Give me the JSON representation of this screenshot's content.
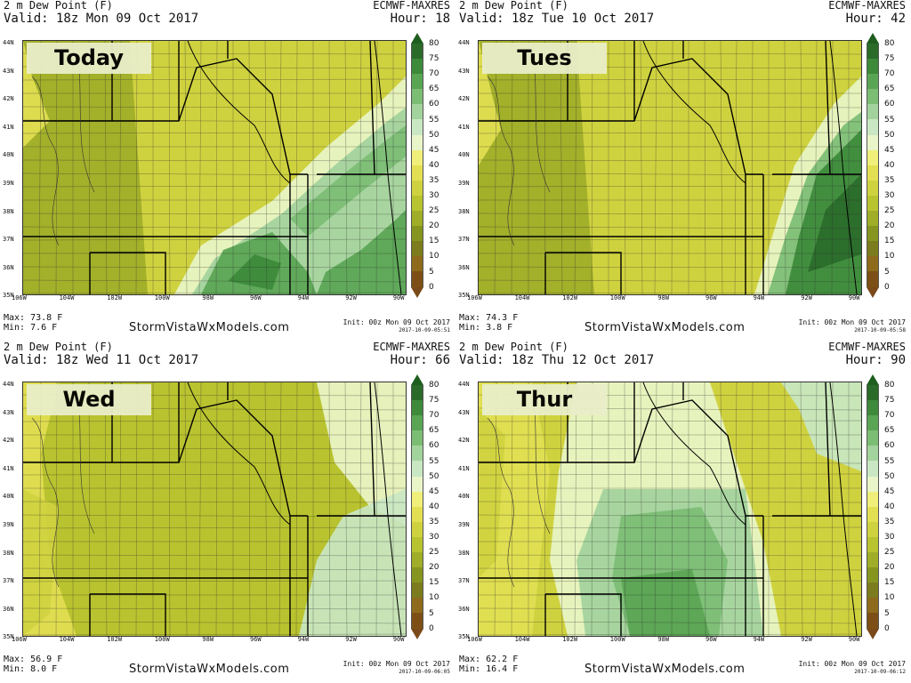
{
  "panels": [
    {
      "title": "2 m Dew Point (F)",
      "valid": "Valid: 18z Mon 09 Oct 2017",
      "model": "ECMWF-MAXRES",
      "hour": "Hour: 18",
      "day": "Today",
      "max": "Max: 73.8 F",
      "min": "Min: 7.6 F",
      "init": "Init: 00z Mon 09 Oct 2017",
      "stamp": "2017-10-09-05:51"
    },
    {
      "title": "2 m Dew Point (F)",
      "valid": "Valid: 18z Tue 10 Oct 2017",
      "model": "ECMWF-MAXRES",
      "hour": "Hour: 42",
      "day": "Tues",
      "max": "Max: 74.3 F",
      "min": "Min: 3.8 F",
      "init": "Init: 00z Mon 09 Oct 2017",
      "stamp": "2017-10-09-05:58"
    },
    {
      "title": "2 m Dew Point (F)",
      "valid": "Valid: 18z Wed 11 Oct 2017",
      "model": "ECMWF-MAXRES",
      "hour": "Hour: 66",
      "day": "Wed",
      "max": "Max: 56.9 F",
      "min": "Min: 8.0 F",
      "init": "Init: 00z Mon 09 Oct 2017",
      "stamp": "2017-10-09-06:05"
    },
    {
      "title": "2 m Dew Point (F)",
      "valid": "Valid: 18z Thu 12 Oct 2017",
      "model": "ECMWF-MAXRES",
      "hour": "Hour: 90",
      "day": "Thur",
      "max": "Max: 62.2 F",
      "min": "Min: 16.4 F",
      "init": "Init: 00z Mon 09 Oct 2017",
      "stamp": "2017-10-09-06:12"
    }
  ],
  "site": "StormVistaWxModels.com",
  "lat_labels": [
    "44N",
    "43N",
    "42N",
    "41N",
    "40N",
    "39N",
    "38N",
    "37N",
    "36N",
    "35N"
  ],
  "lon_labels": [
    "106W",
    "104W",
    "102W",
    "100W",
    "98W",
    "96W",
    "94W",
    "92W",
    "90W"
  ],
  "colorbar": {
    "levels": [
      "80",
      "75",
      "70",
      "65",
      "60",
      "55",
      "50",
      "45",
      "40",
      "35",
      "30",
      "25",
      "20",
      "15",
      "10",
      "5",
      "0"
    ],
    "colors": [
      "#2a6b2a",
      "#3d8a3a",
      "#5aa554",
      "#7cbd74",
      "#a3d39c",
      "#c9e7c3",
      "#e9f5c8",
      "#f0ef7a",
      "#e2e052",
      "#cfd23f",
      "#b8c330",
      "#9fad28",
      "#86951f",
      "#7c7c1e",
      "#8e6b1c",
      "#7d4f16"
    ]
  }
}
